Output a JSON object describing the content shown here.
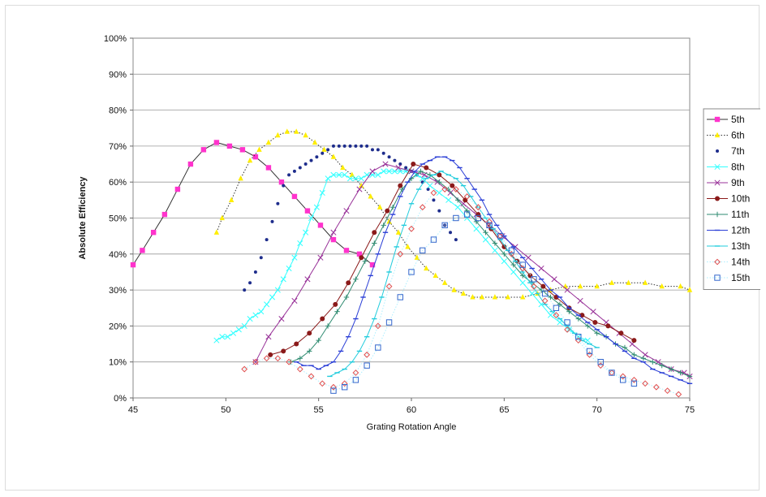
{
  "chart_data": {
    "type": "line",
    "title": "",
    "xlabel": "Grating Rotation Angle",
    "ylabel": "Absolute Efficiency",
    "xlim": [
      45,
      75
    ],
    "ylim": [
      0,
      100
    ],
    "x_ticks": [
      "45",
      "50",
      "55",
      "60",
      "65",
      "70",
      "75"
    ],
    "y_ticks": [
      "0%",
      "10%",
      "20%",
      "30%",
      "40%",
      "50%",
      "60%",
      "70%",
      "80%",
      "90%",
      "100%"
    ],
    "grid": "horizontal",
    "legend_position": "right",
    "series": [
      {
        "name": "5th",
        "color": "#ff33cc",
        "line_color": "#333333",
        "line": "solid",
        "marker": "square",
        "x": [
          45.0,
          45.5,
          46.1,
          46.7,
          47.4,
          48.1,
          48.8,
          49.5,
          50.2,
          50.9,
          51.6,
          52.3,
          53.0,
          53.7,
          54.4,
          55.1,
          55.8,
          56.5,
          57.2,
          57.9
        ],
        "y": [
          37,
          41,
          46,
          51,
          58,
          65,
          69,
          71,
          70,
          69,
          67,
          64,
          60,
          56,
          52,
          48,
          44,
          41,
          40,
          37
        ]
      },
      {
        "name": "6th",
        "color": "#ffee00",
        "line_color": "#333333",
        "line": "dotted",
        "marker": "triangle",
        "x": [
          49.5,
          49.8,
          50.3,
          50.8,
          51.3,
          51.8,
          52.3,
          52.8,
          53.3,
          53.8,
          54.3,
          54.8,
          55.3,
          55.8,
          56.3,
          56.8,
          57.3,
          57.8,
          58.3,
          58.8,
          59.3,
          59.8,
          60.3,
          60.8,
          61.3,
          61.8,
          62.3,
          62.8,
          63.3,
          63.8,
          64.5,
          65.2,
          66.0,
          66.8,
          67.5,
          68.3,
          69.1,
          70.0,
          70.8,
          71.7,
          72.6,
          73.5,
          74.5,
          75.0
        ],
        "y": [
          46,
          50,
          55,
          61,
          66,
          69,
          71,
          73,
          74,
          74,
          73,
          71,
          69,
          67,
          64,
          62,
          59,
          56,
          53,
          49,
          46,
          42,
          39,
          36,
          34,
          32,
          30,
          29,
          28,
          28,
          28,
          28,
          28,
          29,
          30,
          31,
          31,
          31,
          32,
          32,
          32,
          31,
          31,
          30
        ]
      },
      {
        "name": "7th",
        "color": "#1e2d8c",
        "line_color": "#1e2d8c",
        "line": "none",
        "marker": "dot",
        "x": [
          51.0,
          51.3,
          51.6,
          51.9,
          52.2,
          52.5,
          52.8,
          53.1,
          53.4,
          53.7,
          54.0,
          54.3,
          54.6,
          54.9,
          55.2,
          55.5,
          55.8,
          56.1,
          56.4,
          56.7,
          57.0,
          57.3,
          57.6,
          57.9,
          58.2,
          58.5,
          58.8,
          59.1,
          59.4,
          59.7,
          60.0,
          60.3,
          60.6,
          60.9,
          61.2,
          61.5,
          61.8,
          62.1,
          62.4
        ],
        "y": [
          30,
          32,
          35,
          39,
          44,
          49,
          54,
          59,
          62,
          63,
          64,
          65,
          66,
          67,
          68,
          69,
          70,
          70,
          70,
          70,
          70,
          70,
          70,
          69,
          69,
          68,
          67,
          66,
          65,
          64,
          63,
          62,
          60,
          58,
          55,
          52,
          48,
          46,
          44
        ]
      },
      {
        "name": "8th",
        "color": "#33ffff",
        "line_color": "#33ffff",
        "line": "solid",
        "marker": "x",
        "x": [
          49.5,
          49.8,
          50.1,
          50.4,
          50.7,
          51.0,
          51.3,
          51.6,
          51.9,
          52.2,
          52.5,
          52.8,
          53.1,
          53.4,
          53.7,
          54.0,
          54.3,
          54.6,
          54.9,
          55.2,
          55.5,
          55.8,
          56.1,
          56.4,
          56.7,
          57.0,
          57.3,
          57.6,
          57.9,
          58.2,
          58.5,
          58.8,
          59.1,
          59.4,
          59.7,
          60.0,
          60.3,
          60.6,
          61.0,
          61.5,
          62.0,
          62.5,
          63.0,
          63.5,
          64.0,
          64.5,
          65.0,
          65.5,
          66.0,
          66.5,
          67.0,
          67.5,
          68.0,
          68.5,
          69.0,
          69.5
        ],
        "y": [
          16,
          17,
          17,
          18,
          19,
          20,
          22,
          23,
          24,
          26,
          28,
          30,
          33,
          36,
          39,
          43,
          46,
          50,
          53,
          57,
          61,
          62,
          62,
          62,
          61,
          61,
          61,
          62,
          62,
          62,
          63,
          63,
          63,
          63,
          63,
          63,
          62,
          61,
          59,
          57,
          55,
          53,
          50,
          47,
          44,
          41,
          38,
          35,
          32,
          29,
          26,
          23,
          21,
          19,
          17,
          16
        ]
      },
      {
        "name": "9th",
        "color": "#993399",
        "line_color": "#993399",
        "line": "solid",
        "marker": "x",
        "x": [
          51.6,
          52.3,
          53.0,
          53.7,
          54.4,
          55.1,
          55.8,
          56.5,
          57.2,
          57.9,
          58.6,
          59.3,
          60.0,
          60.7,
          61.4,
          62.1,
          62.8,
          63.5,
          64.2,
          64.9,
          65.6,
          66.3,
          67.0,
          67.7,
          68.4,
          69.1,
          69.8,
          70.5,
          71.2,
          71.9,
          72.6,
          73.3,
          74.0,
          74.7,
          75.0
        ],
        "y": [
          10,
          17,
          22,
          27,
          33,
          39,
          46,
          52,
          58,
          63,
          65,
          64,
          63,
          62,
          60,
          57,
          54,
          51,
          48,
          45,
          42,
          39,
          36,
          33,
          30,
          27,
          24,
          21,
          18,
          15,
          12,
          10,
          8,
          7,
          6
        ]
      },
      {
        "name": "10th",
        "color": "#8b1a1a",
        "line_color": "#8b1a1a",
        "line": "solid",
        "marker": "circle",
        "x": [
          52.4,
          53.1,
          53.8,
          54.5,
          55.2,
          55.9,
          56.6,
          57.3,
          58.0,
          58.7,
          59.4,
          60.1,
          60.8,
          61.5,
          62.2,
          62.9,
          63.6,
          64.3,
          65.0,
          65.7,
          66.4,
          67.1,
          67.8,
          68.5,
          69.2,
          69.9,
          70.6,
          71.3,
          72.0
        ],
        "y": [
          12,
          13,
          15,
          18,
          22,
          26,
          32,
          39,
          46,
          52,
          59,
          65,
          64,
          62,
          59,
          55,
          51,
          47,
          42,
          38,
          34,
          31,
          28,
          25,
          23,
          21,
          20,
          18,
          16
        ]
      },
      {
        "name": "11th",
        "color": "#2e8b70",
        "line_color": "#2e8b70",
        "line": "solid",
        "marker": "plus",
        "x": [
          53.5,
          54.0,
          54.5,
          55.0,
          55.5,
          56.0,
          56.5,
          57.0,
          57.5,
          58.0,
          58.5,
          59.0,
          59.5,
          60.0,
          60.5,
          61.0,
          61.5,
          62.0,
          62.5,
          63.0,
          63.5,
          64.0,
          64.5,
          65.0,
          65.5,
          66.0,
          66.5,
          67.0,
          67.5,
          68.0,
          68.5,
          69.0,
          69.5,
          70.0,
          70.5,
          71.0,
          71.5,
          72.0,
          72.5,
          73.0,
          73.5,
          74.0,
          74.5,
          75.0
        ],
        "y": [
          10,
          11,
          13,
          16,
          20,
          24,
          28,
          33,
          38,
          43,
          48,
          53,
          58,
          61,
          63,
          62,
          60,
          58,
          55,
          52,
          49,
          46,
          43,
          40,
          37,
          34,
          32,
          30,
          28,
          26,
          24,
          22,
          20,
          18,
          17,
          15,
          14,
          12,
          11,
          10,
          9,
          8,
          7,
          6
        ]
      },
      {
        "name": "12th",
        "color": "#2a3ed6",
        "line_color": "#2a3ed6",
        "line": "solid",
        "marker": "dash",
        "x": [
          53.8,
          54.2,
          54.6,
          55.0,
          55.4,
          55.8,
          56.2,
          56.6,
          57.0,
          57.4,
          57.8,
          58.2,
          58.6,
          59.0,
          59.4,
          59.8,
          60.2,
          60.6,
          61.0,
          61.4,
          61.8,
          62.2,
          62.6,
          63.0,
          63.4,
          63.8,
          64.2,
          64.6,
          65.0,
          65.5,
          66.0,
          66.5,
          67.0,
          67.5,
          68.0,
          68.5,
          69.0,
          69.5,
          70.0,
          70.5,
          71.0,
          71.5,
          72.0,
          72.5,
          73.0,
          73.5,
          74.0,
          74.5,
          75.0
        ],
        "y": [
          10,
          9,
          9,
          8,
          9,
          10,
          13,
          17,
          22,
          28,
          34,
          40,
          46,
          51,
          56,
          60,
          63,
          65,
          66,
          67,
          67,
          66,
          64,
          61,
          58,
          55,
          51,
          48,
          45,
          42,
          39,
          36,
          33,
          30,
          28,
          25,
          23,
          21,
          19,
          17,
          15,
          13,
          11,
          10,
          8,
          7,
          6,
          5,
          4
        ]
      },
      {
        "name": "13th",
        "color": "#22ccdd",
        "line_color": "#22ccdd",
        "line": "solid",
        "marker": "dash",
        "x": [
          55.6,
          56.0,
          56.4,
          56.8,
          57.2,
          57.6,
          58.0,
          58.4,
          58.8,
          59.2,
          59.6,
          60.0,
          60.4,
          60.8,
          61.2,
          61.6,
          62.0,
          62.4,
          62.8,
          63.2,
          63.6,
          64.0,
          64.4,
          64.8,
          65.2,
          65.6,
          66.0,
          66.4,
          66.8,
          67.2,
          67.6,
          68.0,
          68.4,
          68.8,
          69.2,
          69.6,
          70.0
        ],
        "y": [
          6,
          7,
          8,
          10,
          13,
          17,
          22,
          28,
          35,
          42,
          48,
          54,
          58,
          61,
          62,
          63,
          62,
          61,
          59,
          56,
          53,
          50,
          47,
          44,
          41,
          38,
          35,
          32,
          29,
          26,
          24,
          22,
          20,
          18,
          16,
          15,
          14
        ]
      },
      {
        "name": "14th",
        "color": "#e05050",
        "line_color": "#aaeeff",
        "line": "dotted",
        "marker": "diamond",
        "x": [
          51.0,
          51.6,
          52.2,
          52.8,
          53.4,
          54.0,
          54.6,
          55.2,
          55.8,
          56.4,
          57.0,
          57.6,
          58.2,
          58.8,
          59.4,
          60.0,
          60.6,
          61.2,
          61.8,
          62.4,
          63.0,
          63.6,
          64.2,
          64.8,
          65.4,
          66.0,
          66.6,
          67.2,
          67.8,
          68.4,
          69.0,
          69.6,
          70.2,
          70.8,
          71.4,
          72.0,
          72.6,
          73.2,
          73.8,
          74.4
        ],
        "y": [
          8,
          10,
          11,
          11,
          10,
          8,
          6,
          4,
          3,
          4,
          7,
          12,
          20,
          31,
          40,
          47,
          53,
          57,
          58,
          58,
          56,
          53,
          49,
          45,
          40,
          36,
          31,
          27,
          23,
          19,
          16,
          12,
          9,
          7,
          6,
          5,
          4,
          3,
          2,
          1
        ]
      },
      {
        "name": "15th",
        "color": "#3366cc",
        "line_color": "#aaeeff",
        "line": "dotted",
        "marker": "square-open",
        "x": [
          55.8,
          56.4,
          57.0,
          57.6,
          58.2,
          58.8,
          59.4,
          60.0,
          60.6,
          61.2,
          61.8,
          62.4,
          63.0,
          63.6,
          64.2,
          64.8,
          65.4,
          66.0,
          66.6,
          67.2,
          67.8,
          68.4,
          69.0,
          69.6,
          70.2,
          70.8,
          71.4,
          72.0
        ],
        "y": [
          2,
          3,
          5,
          9,
          14,
          21,
          28,
          35,
          41,
          44,
          48,
          50,
          51,
          50,
          48,
          45,
          41,
          37,
          33,
          29,
          25,
          21,
          17,
          13,
          10,
          7,
          5,
          4
        ]
      }
    ]
  }
}
